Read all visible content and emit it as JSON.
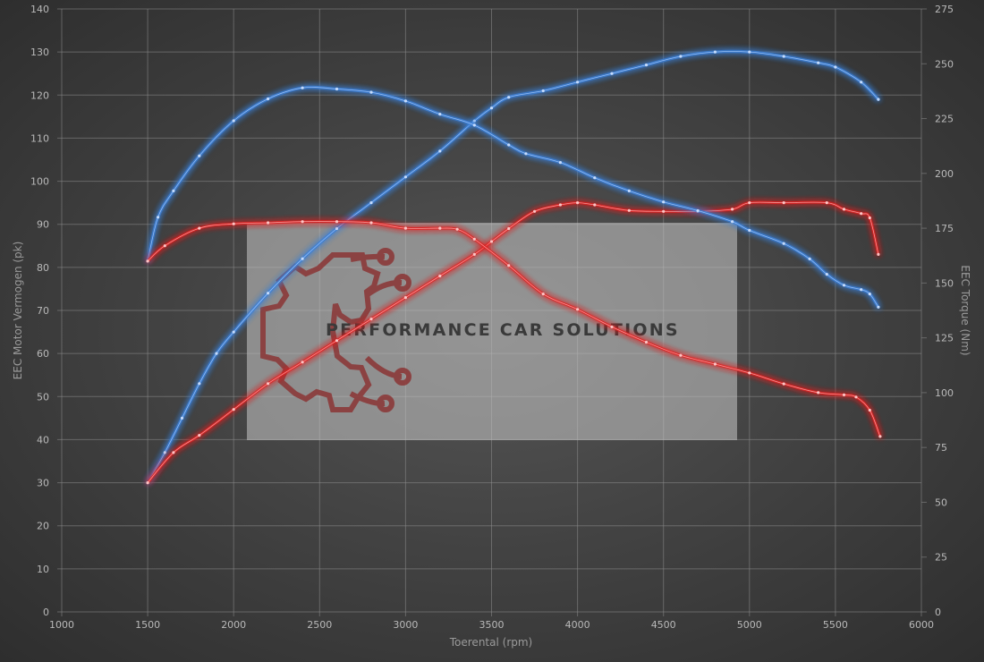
{
  "chart_data": {
    "type": "line",
    "xlabel": "Toerental (rpm)",
    "ylabel_left": "EEC Motor Vermogen (pk)",
    "ylabel_right": "EEC Torque (Nm)",
    "xlim": [
      1000,
      6000
    ],
    "ylim_left": [
      0,
      140
    ],
    "ylim_right": [
      0,
      275
    ],
    "x_ticks": [
      1000,
      1500,
      2000,
      2500,
      3000,
      3500,
      4000,
      4500,
      5000,
      5500,
      6000
    ],
    "y_left_ticks": [
      0,
      10,
      20,
      30,
      40,
      50,
      60,
      70,
      80,
      90,
      100,
      110,
      120,
      130,
      140
    ],
    "y_right_ticks": [
      0,
      25,
      50,
      75,
      100,
      125,
      150,
      175,
      200,
      225,
      250,
      275
    ],
    "grid": true,
    "series": [
      {
        "axis": "left",
        "color": "#3a7fd6",
        "points": [
          [
            1500,
            30
          ],
          [
            1600,
            37
          ],
          [
            1700,
            45
          ],
          [
            1800,
            53
          ],
          [
            1900,
            60
          ],
          [
            2000,
            65
          ],
          [
            2200,
            74
          ],
          [
            2400,
            82
          ],
          [
            2600,
            89
          ],
          [
            2800,
            95
          ],
          [
            3000,
            101
          ],
          [
            3200,
            107
          ],
          [
            3400,
            114
          ],
          [
            3500,
            117
          ],
          [
            3600,
            119.5
          ],
          [
            3800,
            121
          ],
          [
            4000,
            123
          ],
          [
            4200,
            125
          ],
          [
            4400,
            127
          ],
          [
            4600,
            129
          ],
          [
            4800,
            130
          ],
          [
            5000,
            130
          ],
          [
            5200,
            129
          ],
          [
            5400,
            127.5
          ],
          [
            5500,
            126.5
          ],
          [
            5650,
            123
          ],
          [
            5750,
            119
          ]
        ]
      },
      {
        "axis": "left",
        "color": "#e02020",
        "points": [
          [
            1500,
            30
          ],
          [
            1650,
            37
          ],
          [
            1800,
            41
          ],
          [
            2000,
            47
          ],
          [
            2200,
            53
          ],
          [
            2400,
            58
          ],
          [
            2600,
            63
          ],
          [
            2800,
            68
          ],
          [
            3000,
            73
          ],
          [
            3200,
            78
          ],
          [
            3400,
            83
          ],
          [
            3500,
            86
          ],
          [
            3600,
            89
          ],
          [
            3750,
            93
          ],
          [
            3900,
            94.5
          ],
          [
            4000,
            95
          ],
          [
            4100,
            94.5
          ],
          [
            4300,
            93.2
          ],
          [
            4500,
            93
          ],
          [
            4700,
            93
          ],
          [
            4900,
            93.5
          ],
          [
            5000,
            95
          ],
          [
            5200,
            95
          ],
          [
            5450,
            95
          ],
          [
            5550,
            93.5
          ],
          [
            5650,
            92.5
          ],
          [
            5700,
            91.5
          ],
          [
            5750,
            83
          ]
        ]
      },
      {
        "axis": "right",
        "color": "#3a7fd6",
        "points": [
          [
            1500,
            160
          ],
          [
            1560,
            180
          ],
          [
            1650,
            192
          ],
          [
            1800,
            208
          ],
          [
            2000,
            224
          ],
          [
            2200,
            234
          ],
          [
            2400,
            239
          ],
          [
            2600,
            238.5
          ],
          [
            2800,
            237
          ],
          [
            3000,
            233
          ],
          [
            3200,
            227
          ],
          [
            3400,
            222
          ],
          [
            3600,
            213
          ],
          [
            3700,
            209
          ],
          [
            3900,
            205
          ],
          [
            4100,
            198
          ],
          [
            4300,
            192
          ],
          [
            4500,
            187
          ],
          [
            4700,
            183
          ],
          [
            4900,
            178
          ],
          [
            5000,
            174
          ],
          [
            5200,
            168
          ],
          [
            5350,
            161
          ],
          [
            5450,
            154
          ],
          [
            5550,
            149
          ],
          [
            5650,
            147
          ],
          [
            5700,
            145
          ],
          [
            5750,
            139
          ]
        ]
      },
      {
        "axis": "right",
        "color": "#e02020",
        "points": [
          [
            1500,
            160
          ],
          [
            1600,
            167
          ],
          [
            1800,
            175
          ],
          [
            2000,
            177
          ],
          [
            2200,
            177.5
          ],
          [
            2400,
            178
          ],
          [
            2600,
            178
          ],
          [
            2800,
            177.5
          ],
          [
            3000,
            175
          ],
          [
            3200,
            175
          ],
          [
            3300,
            174.5
          ],
          [
            3400,
            170
          ],
          [
            3600,
            158
          ],
          [
            3800,
            145
          ],
          [
            4000,
            138
          ],
          [
            4200,
            130
          ],
          [
            4400,
            123
          ],
          [
            4600,
            117
          ],
          [
            4800,
            113
          ],
          [
            5000,
            109
          ],
          [
            5200,
            104
          ],
          [
            5400,
            100
          ],
          [
            5550,
            99
          ],
          [
            5620,
            98
          ],
          [
            5700,
            92
          ],
          [
            5760,
            80
          ]
        ]
      }
    ],
    "watermark": "PERFORMANCE CAR SOLUTIONS"
  }
}
